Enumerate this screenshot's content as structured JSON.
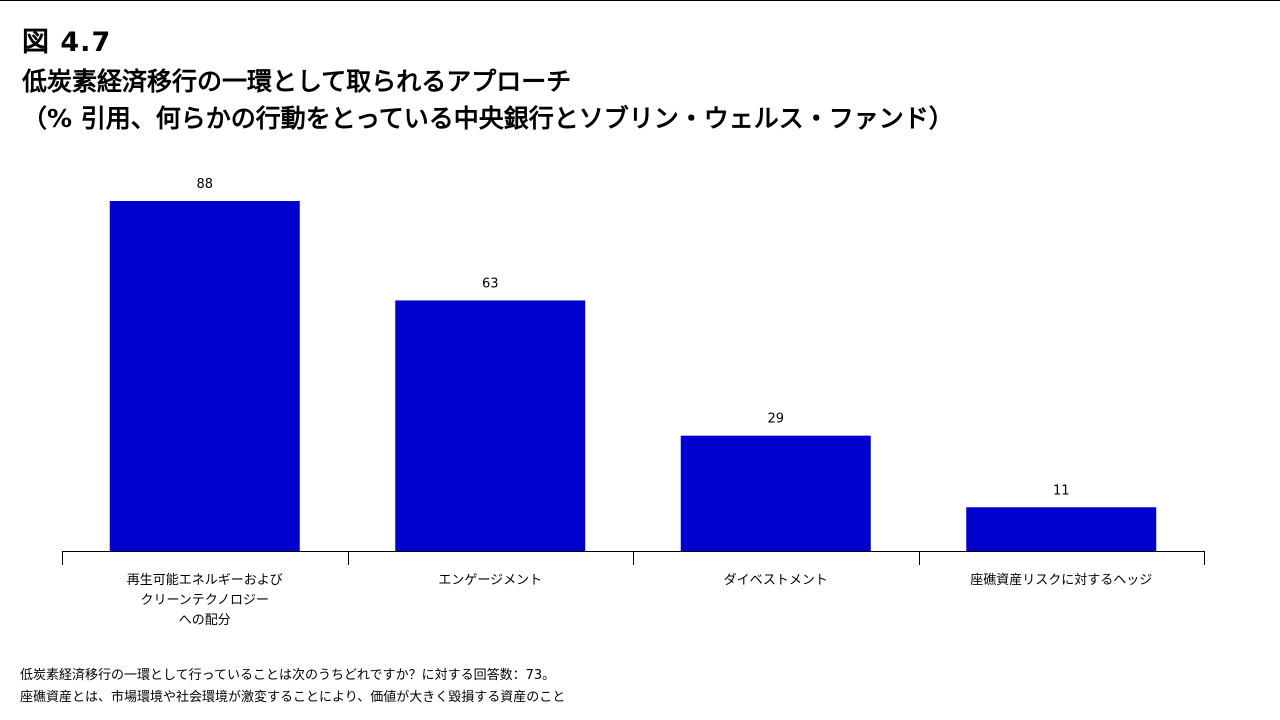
{
  "figure": {
    "label": "図 4.7",
    "title_line1": "低炭素経済移行の一環として取られるアプローチ",
    "title_line2": "（% 引用、何らかの行動をとっている中央銀行とソブリン・ウェルス・ファンド）"
  },
  "chart_data": {
    "type": "bar",
    "categories": [
      [
        "再生可能エネルギーおよび",
        "クリーンテクノロジー",
        "への配分"
      ],
      [
        "エンゲージメント"
      ],
      [
        "ダイベストメント"
      ],
      [
        "座礁資産リスクに対するヘッジ"
      ]
    ],
    "values": [
      88,
      63,
      29,
      11
    ],
    "ylim": [
      0,
      100
    ],
    "bar_color": "#0000CC",
    "grid": false,
    "data_labels": true
  },
  "footnotes": {
    "line1": "低炭素経済移行の一環として行っていることは次のうちどれですか？に対する回答数：73。",
    "line2": "座礁資産とは、市場環境や社会環境が激変することにより、価値が大きく毀損する資産のこと"
  }
}
